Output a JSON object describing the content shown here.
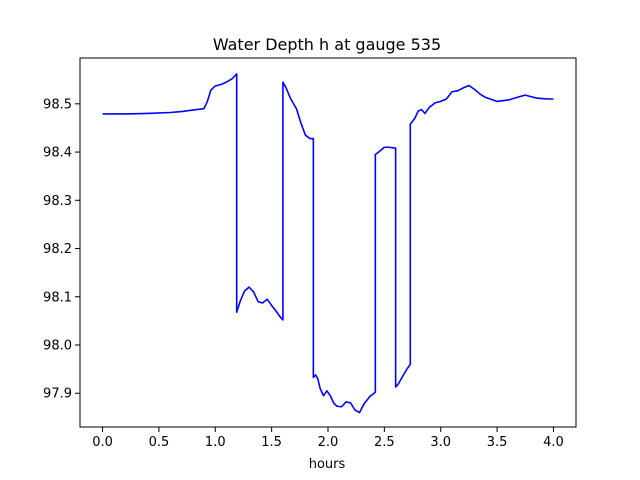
{
  "chart_data": {
    "type": "line",
    "title": "Water Depth h at gauge 535",
    "xlabel": "hours",
    "ylabel": "",
    "xlim": [
      -0.2,
      4.2
    ],
    "ylim": [
      97.83,
      98.595
    ],
    "xticks": [
      0.0,
      0.5,
      1.0,
      1.5,
      2.0,
      2.5,
      3.0,
      3.5,
      4.0
    ],
    "xtick_labels": [
      "0.0",
      "0.5",
      "1.0",
      "1.5",
      "2.0",
      "2.5",
      "3.0",
      "3.5",
      "4.0"
    ],
    "yticks": [
      97.9,
      98.0,
      98.1,
      98.2,
      98.3,
      98.4,
      98.5
    ],
    "ytick_labels": [
      "97.9",
      "98.0",
      "98.1",
      "98.2",
      "98.3",
      "98.4",
      "98.5"
    ],
    "grid": false,
    "series": [
      {
        "color": "#0000ff",
        "x": [
          0.0,
          0.2,
          0.4,
          0.6,
          0.7,
          0.8,
          0.9,
          0.93,
          0.96,
          1.0,
          1.05,
          1.1,
          1.15,
          1.19,
          1.19,
          1.22,
          1.26,
          1.3,
          1.34,
          1.38,
          1.42,
          1.46,
          1.5,
          1.54,
          1.58,
          1.6,
          1.6,
          1.63,
          1.67,
          1.72,
          1.76,
          1.8,
          1.84,
          1.87,
          1.87,
          1.89,
          1.91,
          1.93,
          1.96,
          1.99,
          2.02,
          2.05,
          2.08,
          2.12,
          2.16,
          2.2,
          2.24,
          2.28,
          2.32,
          2.37,
          2.42,
          2.42,
          2.46,
          2.5,
          2.54,
          2.6,
          2.6,
          2.62,
          2.65,
          2.7,
          2.73,
          2.73,
          2.77,
          2.8,
          2.83,
          2.86,
          2.9,
          2.95,
          3.0,
          3.05,
          3.1,
          3.15,
          3.2,
          3.25,
          3.3,
          3.35,
          3.4,
          3.5,
          3.6,
          3.7,
          3.75,
          3.8,
          3.85,
          3.9,
          3.95,
          4.0
        ],
        "y": [
          98.479,
          98.479,
          98.48,
          98.482,
          98.484,
          98.487,
          98.49,
          98.505,
          98.528,
          98.537,
          98.54,
          98.545,
          98.552,
          98.562,
          98.068,
          98.09,
          98.112,
          98.12,
          98.11,
          98.09,
          98.087,
          98.095,
          98.082,
          98.07,
          98.057,
          98.052,
          98.545,
          98.532,
          98.51,
          98.49,
          98.46,
          98.435,
          98.428,
          98.428,
          97.933,
          97.938,
          97.93,
          97.91,
          97.895,
          97.905,
          97.895,
          97.88,
          97.873,
          97.872,
          97.882,
          97.88,
          97.865,
          97.86,
          97.878,
          97.893,
          97.902,
          98.395,
          98.402,
          98.41,
          98.41,
          98.408,
          97.913,
          97.918,
          97.93,
          97.95,
          97.96,
          98.458,
          98.47,
          98.485,
          98.488,
          98.48,
          98.493,
          98.502,
          98.505,
          98.51,
          98.525,
          98.527,
          98.533,
          98.538,
          98.53,
          98.52,
          98.513,
          98.505,
          98.508,
          98.515,
          98.518,
          98.515,
          98.512,
          98.511,
          98.51,
          98.51
        ]
      }
    ]
  }
}
